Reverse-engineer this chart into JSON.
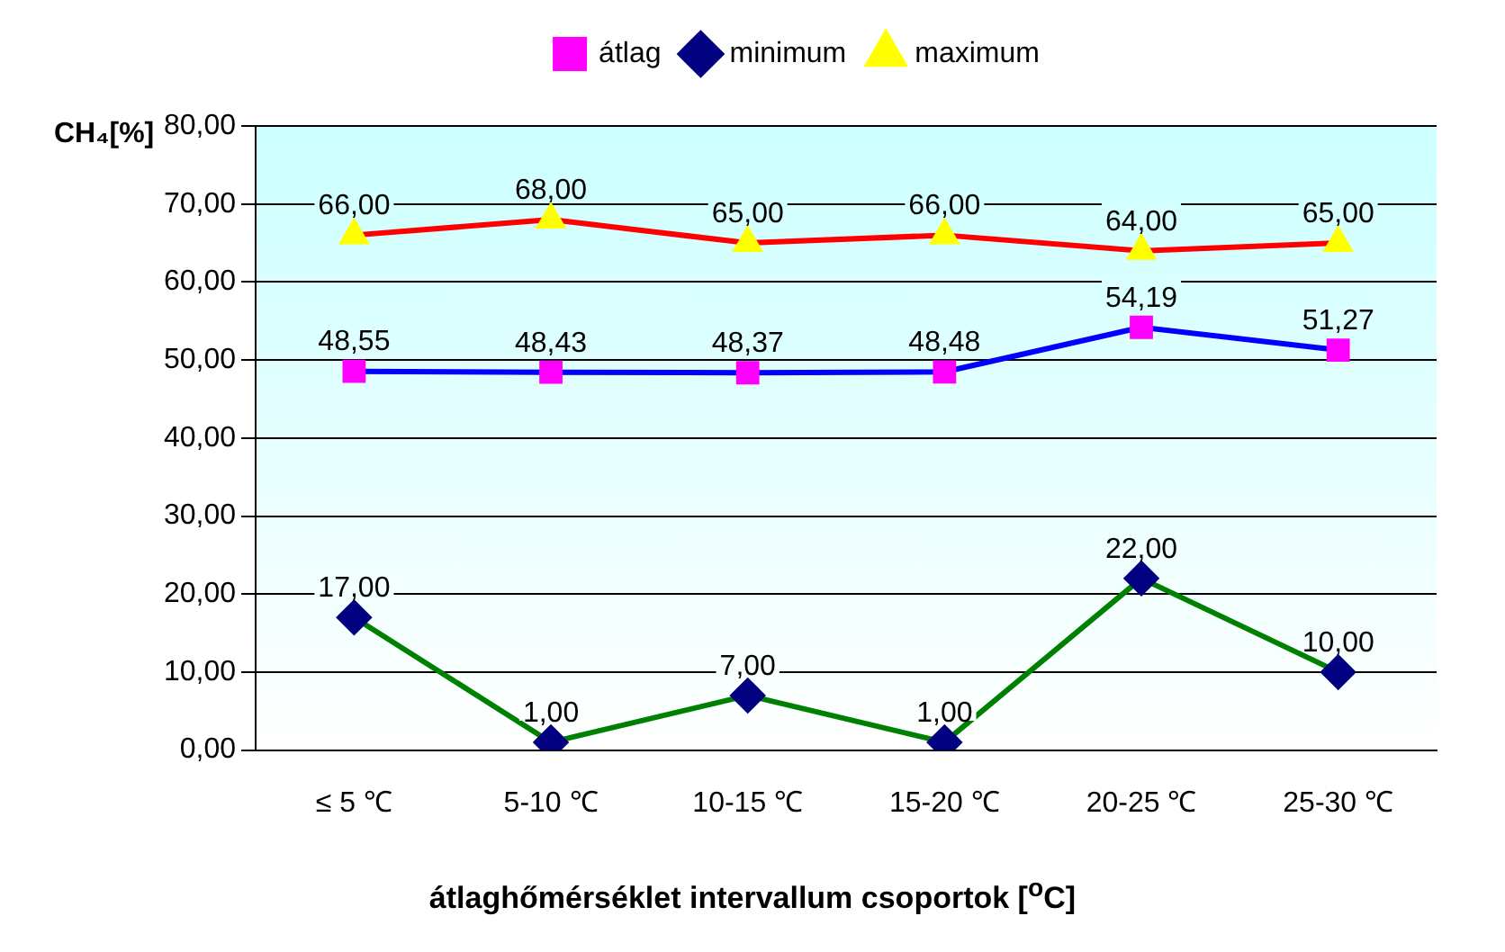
{
  "chart_data": {
    "type": "line",
    "ylabel": "CH₄[%]",
    "xlabel": "átlaghőmérséklet intervallum csoportok [$^{o}$C]",
    "categories": [
      "≤ 5 ℃",
      "5-10 ℃",
      "10-15 ℃",
      "15-20 ℃",
      "20-25 ℃",
      "25-30 ℃"
    ],
    "series": [
      {
        "name": "átlag",
        "color": "#0000ff",
        "marker": "square",
        "values": [
          48.55,
          48.43,
          48.37,
          48.48,
          54.19,
          51.27
        ],
        "value_labels": [
          "48,55",
          "48,43",
          "48,37",
          "48,48",
          "54,19",
          "51,27"
        ]
      },
      {
        "name": "minimum",
        "color": "#008000",
        "marker": "diamond",
        "values": [
          17,
          1,
          7,
          1,
          22,
          10
        ],
        "value_labels": [
          "17,00",
          "1,00",
          "7,00",
          "1,00",
          "22,00",
          "10,00"
        ]
      },
      {
        "name": "maximum",
        "color": "#ff0000",
        "marker": "triangle",
        "values": [
          66,
          68,
          65,
          66,
          64,
          65
        ],
        "value_labels": [
          "66,00",
          "68,00",
          "65,00",
          "66,00",
          "64,00",
          "65,00"
        ]
      }
    ],
    "ylim": [
      0,
      80
    ],
    "yticks": [
      {
        "value": 0,
        "label": "0,00"
      },
      {
        "value": 10,
        "label": "10,00"
      },
      {
        "value": 20,
        "label": "20,00"
      },
      {
        "value": 30,
        "label": "30,00"
      },
      {
        "value": 40,
        "label": "40,00"
      },
      {
        "value": 50,
        "label": "50,00"
      },
      {
        "value": 60,
        "label": "60,00"
      },
      {
        "value": 70,
        "label": "70,00"
      },
      {
        "value": 80,
        "label": "80,00"
      }
    ],
    "grid": "y",
    "legend": "top",
    "line_style": "solid"
  }
}
